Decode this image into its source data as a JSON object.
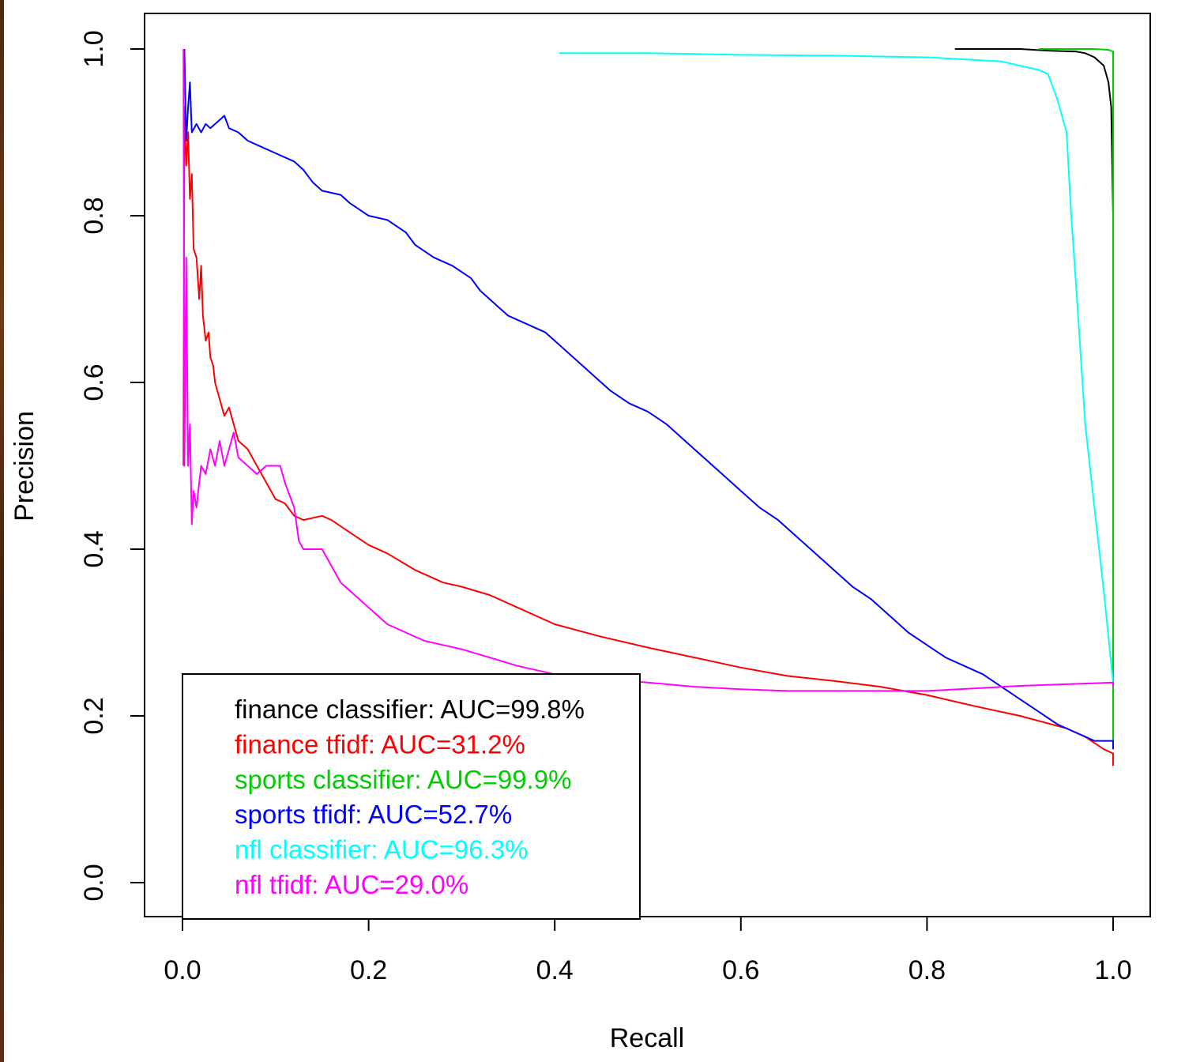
{
  "chart_data": {
    "type": "line",
    "title": "",
    "xlabel": "Recall",
    "ylabel": "Precision",
    "xlim": [
      0.0,
      1.0
    ],
    "ylim": [
      0.0,
      1.0
    ],
    "x_ticks": [
      "0.0",
      "0.2",
      "0.4",
      "0.6",
      "0.8",
      "1.0"
    ],
    "y_ticks": [
      "0.0",
      "0.2",
      "0.4",
      "0.6",
      "0.8",
      "1.0"
    ],
    "grid": false,
    "legend_position": "bottom-left",
    "series": [
      {
        "name": "finance classifier: AUC=99.8%",
        "color": "#000000",
        "points": [
          [
            0.83,
            1.0
          ],
          [
            0.9,
            1.0
          ],
          [
            0.93,
            0.998
          ],
          [
            0.96,
            0.997
          ],
          [
            0.97,
            0.995
          ],
          [
            0.98,
            0.99
          ],
          [
            0.99,
            0.98
          ],
          [
            0.995,
            0.96
          ],
          [
            0.998,
            0.93
          ],
          [
            1.0,
            0.8
          ]
        ]
      },
      {
        "name": "finance tfidf: AUC=31.2%",
        "color": "#ff0000",
        "points": [
          [
            0.001,
            0.5
          ],
          [
            0.002,
            0.93
          ],
          [
            0.004,
            0.86
          ],
          [
            0.006,
            0.9
          ],
          [
            0.008,
            0.82
          ],
          [
            0.01,
            0.85
          ],
          [
            0.012,
            0.76
          ],
          [
            0.015,
            0.75
          ],
          [
            0.018,
            0.7
          ],
          [
            0.02,
            0.74
          ],
          [
            0.022,
            0.68
          ],
          [
            0.025,
            0.65
          ],
          [
            0.028,
            0.66
          ],
          [
            0.03,
            0.63
          ],
          [
            0.033,
            0.62
          ],
          [
            0.035,
            0.6
          ],
          [
            0.04,
            0.58
          ],
          [
            0.045,
            0.56
          ],
          [
            0.05,
            0.57
          ],
          [
            0.055,
            0.55
          ],
          [
            0.06,
            0.53
          ],
          [
            0.07,
            0.52
          ],
          [
            0.08,
            0.5
          ],
          [
            0.09,
            0.48
          ],
          [
            0.1,
            0.46
          ],
          [
            0.11,
            0.455
          ],
          [
            0.12,
            0.44
          ],
          [
            0.13,
            0.435
          ],
          [
            0.15,
            0.44
          ],
          [
            0.16,
            0.435
          ],
          [
            0.18,
            0.42
          ],
          [
            0.2,
            0.405
          ],
          [
            0.22,
            0.395
          ],
          [
            0.25,
            0.375
          ],
          [
            0.28,
            0.36
          ],
          [
            0.3,
            0.355
          ],
          [
            0.33,
            0.345
          ],
          [
            0.36,
            0.33
          ],
          [
            0.4,
            0.31
          ],
          [
            0.45,
            0.295
          ],
          [
            0.5,
            0.282
          ],
          [
            0.55,
            0.27
          ],
          [
            0.6,
            0.258
          ],
          [
            0.65,
            0.248
          ],
          [
            0.7,
            0.242
          ],
          [
            0.75,
            0.235
          ],
          [
            0.8,
            0.225
          ],
          [
            0.85,
            0.212
          ],
          [
            0.9,
            0.2
          ],
          [
            0.95,
            0.185
          ],
          [
            0.97,
            0.175
          ],
          [
            0.99,
            0.16
          ],
          [
            1.0,
            0.155
          ],
          [
            1.0,
            0.14
          ]
        ]
      },
      {
        "name": "sports classifier: AUC=99.9%",
        "color": "#00cd00",
        "points": [
          [
            0.92,
            1.0
          ],
          [
            0.98,
            1.0
          ],
          [
            0.995,
            0.999
          ],
          [
            0.997,
            0.998
          ],
          [
            1.0,
            0.997
          ],
          [
            1.0,
            0.17
          ]
        ]
      },
      {
        "name": "sports tfidf: AUC=52.7%",
        "color": "#0000ff",
        "points": [
          [
            0.002,
            1.0
          ],
          [
            0.004,
            0.89
          ],
          [
            0.006,
            0.93
          ],
          [
            0.008,
            0.96
          ],
          [
            0.01,
            0.9
          ],
          [
            0.015,
            0.91
          ],
          [
            0.02,
            0.9
          ],
          [
            0.025,
            0.91
          ],
          [
            0.03,
            0.905
          ],
          [
            0.04,
            0.915
          ],
          [
            0.045,
            0.92
          ],
          [
            0.05,
            0.905
          ],
          [
            0.06,
            0.9
          ],
          [
            0.07,
            0.89
          ],
          [
            0.08,
            0.885
          ],
          [
            0.1,
            0.875
          ],
          [
            0.12,
            0.865
          ],
          [
            0.13,
            0.855
          ],
          [
            0.14,
            0.84
          ],
          [
            0.15,
            0.83
          ],
          [
            0.17,
            0.825
          ],
          [
            0.18,
            0.815
          ],
          [
            0.2,
            0.8
          ],
          [
            0.22,
            0.795
          ],
          [
            0.24,
            0.78
          ],
          [
            0.25,
            0.765
          ],
          [
            0.27,
            0.75
          ],
          [
            0.29,
            0.74
          ],
          [
            0.31,
            0.725
          ],
          [
            0.32,
            0.71
          ],
          [
            0.34,
            0.69
          ],
          [
            0.35,
            0.68
          ],
          [
            0.37,
            0.67
          ],
          [
            0.39,
            0.66
          ],
          [
            0.4,
            0.65
          ],
          [
            0.42,
            0.63
          ],
          [
            0.44,
            0.61
          ],
          [
            0.46,
            0.59
          ],
          [
            0.48,
            0.575
          ],
          [
            0.5,
            0.565
          ],
          [
            0.52,
            0.55
          ],
          [
            0.54,
            0.53
          ],
          [
            0.56,
            0.51
          ],
          [
            0.58,
            0.49
          ],
          [
            0.6,
            0.47
          ],
          [
            0.62,
            0.45
          ],
          [
            0.64,
            0.435
          ],
          [
            0.66,
            0.415
          ],
          [
            0.68,
            0.395
          ],
          [
            0.7,
            0.375
          ],
          [
            0.72,
            0.355
          ],
          [
            0.74,
            0.34
          ],
          [
            0.76,
            0.32
          ],
          [
            0.78,
            0.3
          ],
          [
            0.8,
            0.285
          ],
          [
            0.82,
            0.27
          ],
          [
            0.84,
            0.26
          ],
          [
            0.86,
            0.25
          ],
          [
            0.88,
            0.235
          ],
          [
            0.9,
            0.22
          ],
          [
            0.92,
            0.205
          ],
          [
            0.94,
            0.19
          ],
          [
            0.96,
            0.18
          ],
          [
            0.98,
            0.17
          ],
          [
            1.0,
            0.17
          ],
          [
            1.0,
            0.16
          ]
        ]
      },
      {
        "name": "nfl classifier: AUC=96.3%",
        "color": "#00ffff",
        "points": [
          [
            0.405,
            0.995
          ],
          [
            0.5,
            0.995
          ],
          [
            0.6,
            0.993
          ],
          [
            0.7,
            0.992
          ],
          [
            0.8,
            0.99
          ],
          [
            0.88,
            0.985
          ],
          [
            0.9,
            0.98
          ],
          [
            0.92,
            0.975
          ],
          [
            0.93,
            0.97
          ],
          [
            0.94,
            0.94
          ],
          [
            0.95,
            0.9
          ],
          [
            0.955,
            0.8
          ],
          [
            0.96,
            0.72
          ],
          [
            0.97,
            0.55
          ],
          [
            0.98,
            0.45
          ],
          [
            0.99,
            0.35
          ],
          [
            1.0,
            0.24
          ]
        ]
      },
      {
        "name": "nfl tfidf: AUC=29.0%",
        "color": "#ff00ff",
        "points": [
          [
            0.001,
            1.0
          ],
          [
            0.002,
            0.5
          ],
          [
            0.004,
            0.75
          ],
          [
            0.006,
            0.5
          ],
          [
            0.008,
            0.55
          ],
          [
            0.01,
            0.43
          ],
          [
            0.012,
            0.47
          ],
          [
            0.015,
            0.45
          ],
          [
            0.02,
            0.5
          ],
          [
            0.025,
            0.49
          ],
          [
            0.03,
            0.52
          ],
          [
            0.035,
            0.5
          ],
          [
            0.04,
            0.53
          ],
          [
            0.045,
            0.5
          ],
          [
            0.05,
            0.52
          ],
          [
            0.055,
            0.54
          ],
          [
            0.06,
            0.51
          ],
          [
            0.07,
            0.5
          ],
          [
            0.08,
            0.49
          ],
          [
            0.09,
            0.5
          ],
          [
            0.1,
            0.5
          ],
          [
            0.105,
            0.5
          ],
          [
            0.11,
            0.48
          ],
          [
            0.12,
            0.45
          ],
          [
            0.125,
            0.41
          ],
          [
            0.13,
            0.4
          ],
          [
            0.15,
            0.4
          ],
          [
            0.16,
            0.38
          ],
          [
            0.17,
            0.36
          ],
          [
            0.19,
            0.34
          ],
          [
            0.2,
            0.33
          ],
          [
            0.22,
            0.31
          ],
          [
            0.24,
            0.3
          ],
          [
            0.26,
            0.29
          ],
          [
            0.28,
            0.285
          ],
          [
            0.3,
            0.28
          ],
          [
            0.33,
            0.27
          ],
          [
            0.36,
            0.26
          ],
          [
            0.4,
            0.25
          ],
          [
            0.45,
            0.245
          ],
          [
            0.5,
            0.24
          ],
          [
            0.55,
            0.235
          ],
          [
            0.6,
            0.232
          ],
          [
            0.65,
            0.23
          ],
          [
            0.7,
            0.23
          ],
          [
            0.75,
            0.23
          ],
          [
            0.8,
            0.23
          ],
          [
            0.85,
            0.233
          ],
          [
            0.9,
            0.236
          ],
          [
            0.95,
            0.238
          ],
          [
            1.0,
            0.24
          ],
          [
            1.0,
            0.235
          ]
        ]
      }
    ]
  }
}
